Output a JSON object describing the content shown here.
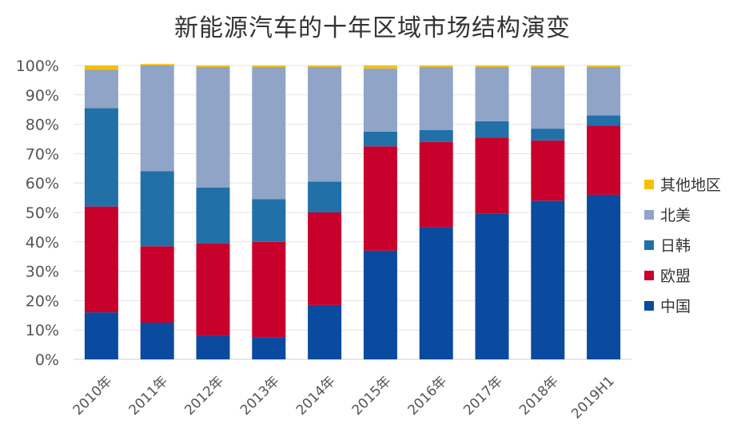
{
  "chart_data": {
    "type": "bar",
    "stacked": true,
    "title": "新能源汽车的十年区域市场结构演变",
    "categories": [
      "2010年",
      "2011年",
      "2012年",
      "2013年",
      "2014年",
      "2015年",
      "2016年",
      "2017年",
      "2018年",
      "2019H1"
    ],
    "yticks": [
      "0%",
      "10%",
      "20%",
      "30%",
      "40%",
      "50%",
      "60%",
      "70%",
      "80%",
      "90%",
      "100%"
    ],
    "ylim": [
      0,
      100
    ],
    "grid": true,
    "legend_position": "right",
    "series": [
      {
        "name": "中国",
        "color": "#0a4a9f",
        "values": [
          16,
          12.5,
          8,
          7.5,
          18.5,
          37,
          45,
          49.5,
          54,
          56
        ]
      },
      {
        "name": "欧盟",
        "color": "#c8002c",
        "values": [
          36,
          26,
          31.5,
          32.5,
          31.5,
          35.5,
          29,
          26,
          20.5,
          23.5
        ]
      },
      {
        "name": "日韩",
        "color": "#2170a8",
        "values": [
          33.5,
          25.5,
          19,
          14.5,
          10.5,
          5,
          4,
          5.5,
          4,
          3.5
        ]
      },
      {
        "name": "北美",
        "color": "#8fa4c7",
        "values": [
          13,
          36,
          41,
          45,
          39,
          21.5,
          21.5,
          18.5,
          21,
          16.5
        ]
      },
      {
        "name": "其他地区",
        "color": "#f7c000",
        "values": [
          1.5,
          0.5,
          0.5,
          0.5,
          0.5,
          1,
          0.5,
          0.5,
          0.5,
          0.5
        ]
      }
    ]
  }
}
